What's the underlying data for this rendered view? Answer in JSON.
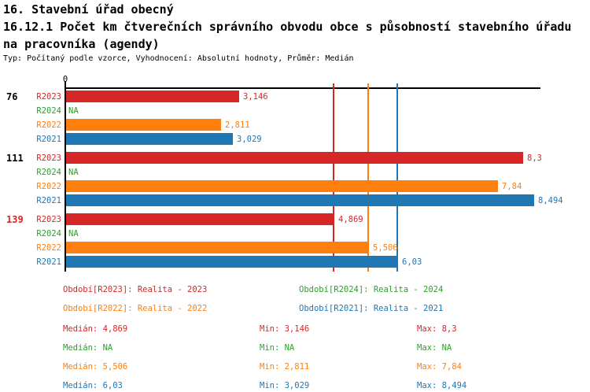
{
  "header": {
    "title": "16. Stavební úřad obecný",
    "subtitle_line1": "16.12.1 Počet km čtverečních správního obvodu obce s působností stavebního úřadu",
    "subtitle_line2": "na pracovníka (agendy)",
    "meta": "Typ: Počítaný podle vzorce, Vyhodnocení: Absolutní hodnoty, Průměr: Medián"
  },
  "colors": {
    "R2023": "#d62728",
    "R2024": "#2ca02c",
    "R2022": "#ff7f0e",
    "R2021": "#1f77b4",
    "axis": "#000000",
    "group_label_default": "#000000",
    "group_label_highlight": "#d62728"
  },
  "chart_data": {
    "type": "bar",
    "orientation": "horizontal",
    "x_origin_label": "0",
    "value_axis": {
      "min": 0,
      "max": 8.61,
      "grid": false
    },
    "series_order": [
      "R2023",
      "R2024",
      "R2022",
      "R2021"
    ],
    "groups": [
      {
        "label": "76",
        "label_color": "#000000",
        "bars": [
          {
            "series": "R2023",
            "value": 3.146,
            "display": "3,146"
          },
          {
            "series": "R2024",
            "value": null,
            "display": "NA"
          },
          {
            "series": "R2022",
            "value": 2.811,
            "display": "2,811"
          },
          {
            "series": "R2021",
            "value": 3.029,
            "display": "3,029"
          }
        ]
      },
      {
        "label": "111",
        "label_color": "#000000",
        "bars": [
          {
            "series": "R2023",
            "value": 8.3,
            "display": "8,3"
          },
          {
            "series": "R2024",
            "value": null,
            "display": "NA"
          },
          {
            "series": "R2022",
            "value": 7.84,
            "display": "7,84"
          },
          {
            "series": "R2021",
            "value": 8.494,
            "display": "8,494"
          }
        ]
      },
      {
        "label": "139",
        "label_color": "#d62728",
        "bars": [
          {
            "series": "R2023",
            "value": 4.869,
            "display": "4,869"
          },
          {
            "series": "R2024",
            "value": null,
            "display": "NA"
          },
          {
            "series": "R2022",
            "value": 5.506,
            "display": "5,506"
          },
          {
            "series": "R2021",
            "value": 6.03,
            "display": "6,03"
          }
        ]
      }
    ],
    "median_lines": [
      {
        "series": "R2023",
        "value": 4.869
      },
      {
        "series": "R2022",
        "value": 5.506
      },
      {
        "series": "R2021",
        "value": 6.03
      }
    ]
  },
  "legend": {
    "items": [
      {
        "series": "R2023",
        "label": "Období[R2023]: Realita - 2023"
      },
      {
        "series": "R2024",
        "label": "Období[R2024]: Realita - 2024"
      },
      {
        "series": "R2022",
        "label": "Období[R2022]: Realita - 2022"
      },
      {
        "series": "R2021",
        "label": "Období[R2021]: Realita - 2021"
      }
    ]
  },
  "stats": {
    "rows": [
      {
        "series": "R2023",
        "median": "Medián: 4,869",
        "min": "Min: 3,146",
        "max": "Max: 8,3"
      },
      {
        "series": "R2024",
        "median": "Medián: NA",
        "min": "Min: NA",
        "max": "Max: NA"
      },
      {
        "series": "R2022",
        "median": "Medián: 5,506",
        "min": "Min: 2,811",
        "max": "Max: 7,84"
      },
      {
        "series": "R2021",
        "median": "Medián: 6,03",
        "min": "Min: 3,029",
        "max": "Max: 8,494"
      }
    ]
  }
}
